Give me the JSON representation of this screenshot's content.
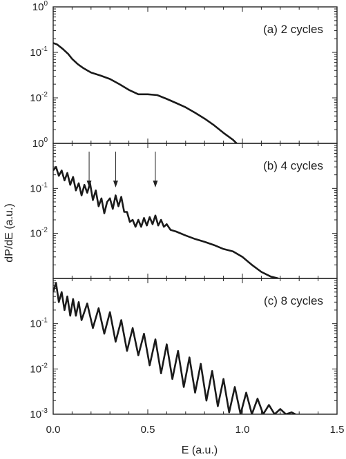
{
  "chart_data": {
    "type": "line",
    "xlabel": "E (a.u.)",
    "ylabel": "dP/dE (a.u.)",
    "xlim": [
      0.0,
      1.5
    ],
    "x_ticks": [
      0.0,
      0.5,
      1.0,
      1.5
    ],
    "x_tick_labels": [
      "0.0",
      "0.5",
      "1.0",
      "1.5"
    ],
    "yscale": "log",
    "grid": false,
    "panels": [
      {
        "label": "(a) 2 cycles",
        "ylim": [
          0.001,
          1
        ],
        "y_ticks": [
          {
            "value": 1,
            "mantissa": "10",
            "exponent": "0"
          },
          {
            "value": 0.1,
            "mantissa": "10",
            "exponent": "-1"
          },
          {
            "value": 0.01,
            "mantissa": "10",
            "exponent": "-2"
          }
        ],
        "series": {
          "x": [
            0.0,
            0.02,
            0.05,
            0.08,
            0.1,
            0.13,
            0.16,
            0.2,
            0.25,
            0.3,
            0.35,
            0.4,
            0.45,
            0.5,
            0.55,
            0.6,
            0.65,
            0.7,
            0.75,
            0.8,
            0.85,
            0.9,
            0.95,
            1.0,
            1.03
          ],
          "y": [
            0.16,
            0.15,
            0.12,
            0.092,
            0.072,
            0.055,
            0.045,
            0.036,
            0.031,
            0.026,
            0.02,
            0.015,
            0.012,
            0.012,
            0.0115,
            0.0095,
            0.0077,
            0.0062,
            0.0047,
            0.0035,
            0.0025,
            0.0017,
            0.0012,
            0.00075,
            0.00055
          ]
        }
      },
      {
        "label": "(b) 4 cycles",
        "ylim": [
          0.001,
          1
        ],
        "y_ticks": [
          {
            "value": 1,
            "mantissa": "10",
            "exponent": "0"
          },
          {
            "value": 0.1,
            "mantissa": "10",
            "exponent": "-1"
          },
          {
            "value": 0.01,
            "mantissa": "10",
            "exponent": "-2"
          }
        ],
        "arrows_x": [
          0.19,
          0.33,
          0.54
        ],
        "series": {
          "x": [
            0.0,
            0.015,
            0.03,
            0.045,
            0.06,
            0.075,
            0.09,
            0.105,
            0.12,
            0.135,
            0.15,
            0.165,
            0.18,
            0.195,
            0.21,
            0.225,
            0.24,
            0.255,
            0.27,
            0.285,
            0.3,
            0.315,
            0.33,
            0.345,
            0.36,
            0.375,
            0.39,
            0.405,
            0.42,
            0.435,
            0.45,
            0.465,
            0.48,
            0.495,
            0.51,
            0.525,
            0.54,
            0.555,
            0.57,
            0.585,
            0.6,
            0.62,
            0.65,
            0.7,
            0.75,
            0.8,
            0.85,
            0.9,
            0.95,
            1.0,
            1.05,
            1.1,
            1.15,
            1.19
          ],
          "y": [
            0.25,
            0.3,
            0.19,
            0.25,
            0.15,
            0.22,
            0.12,
            0.18,
            0.09,
            0.13,
            0.07,
            0.12,
            0.08,
            0.13,
            0.055,
            0.09,
            0.04,
            0.06,
            0.028,
            0.05,
            0.06,
            0.035,
            0.07,
            0.04,
            0.065,
            0.03,
            0.03,
            0.018,
            0.02,
            0.014,
            0.02,
            0.014,
            0.022,
            0.015,
            0.023,
            0.016,
            0.025,
            0.015,
            0.02,
            0.014,
            0.016,
            0.012,
            0.011,
            0.009,
            0.0075,
            0.0065,
            0.0055,
            0.0045,
            0.004,
            0.003,
            0.002,
            0.0014,
            0.0011,
            0.001
          ]
        }
      },
      {
        "label": "(c) 8 cycles",
        "ylim": [
          0.001,
          1
        ],
        "y_ticks": [
          {
            "value": 0.1,
            "mantissa": "10",
            "exponent": "-1"
          },
          {
            "value": 0.01,
            "mantissa": "10",
            "exponent": "-2"
          },
          {
            "value": 0.001,
            "mantissa": "10",
            "exponent": "-3"
          }
        ],
        "series": {
          "x": [
            0.0,
            0.015,
            0.03,
            0.045,
            0.06,
            0.075,
            0.09,
            0.105,
            0.12,
            0.135,
            0.15,
            0.18,
            0.21,
            0.24,
            0.27,
            0.3,
            0.33,
            0.36,
            0.39,
            0.42,
            0.45,
            0.48,
            0.51,
            0.54,
            0.57,
            0.6,
            0.63,
            0.66,
            0.69,
            0.72,
            0.75,
            0.78,
            0.81,
            0.84,
            0.87,
            0.9,
            0.93,
            0.96,
            0.99,
            1.02,
            1.05,
            1.08,
            1.11,
            1.14,
            1.17,
            1.2,
            1.23,
            1.26,
            1.28
          ],
          "y": [
            0.5,
            0.8,
            0.3,
            0.5,
            0.2,
            0.4,
            0.15,
            0.35,
            0.15,
            0.3,
            0.12,
            0.28,
            0.08,
            0.22,
            0.06,
            0.18,
            0.04,
            0.12,
            0.025,
            0.08,
            0.02,
            0.06,
            0.012,
            0.045,
            0.008,
            0.035,
            0.006,
            0.025,
            0.004,
            0.018,
            0.003,
            0.013,
            0.002,
            0.009,
            0.0015,
            0.006,
            0.0011,
            0.004,
            0.001,
            0.003,
            0.001,
            0.0022,
            0.001,
            0.0016,
            0.001,
            0.0013,
            0.001,
            0.0011,
            0.001
          ]
        }
      }
    ]
  }
}
